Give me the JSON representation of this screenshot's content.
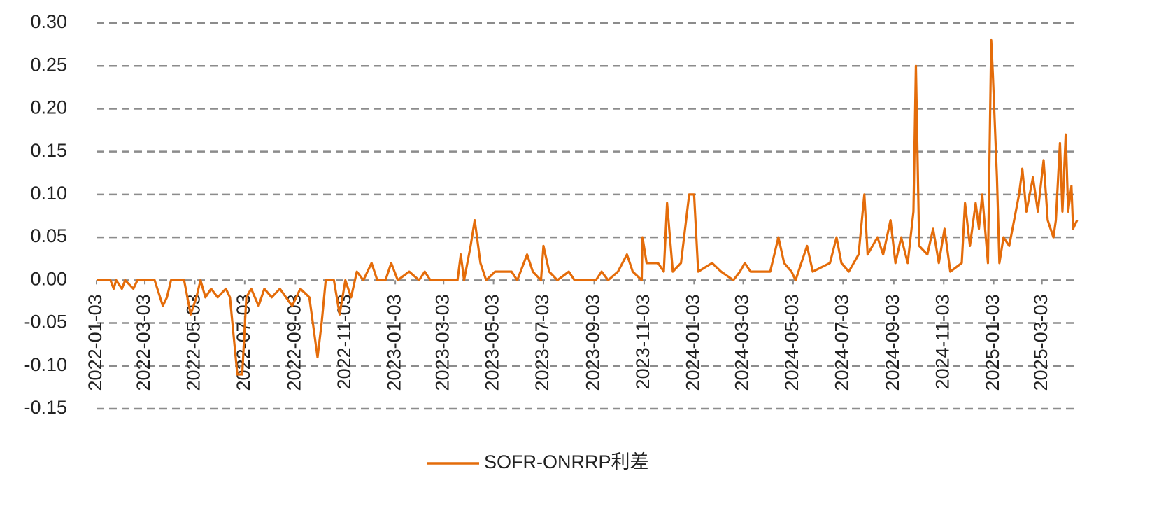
{
  "chart_data": {
    "type": "line",
    "x": [
      "2022-01-03",
      "2022-01-20",
      "2022-01-24",
      "2022-01-27",
      "2022-02-03",
      "2022-02-07",
      "2022-02-17",
      "2022-02-22",
      "2022-03-15",
      "2022-03-25",
      "2022-03-30",
      "2022-04-04",
      "2022-04-20",
      "2022-04-28",
      "2022-05-05",
      "2022-05-10",
      "2022-05-16",
      "2022-05-23",
      "2022-05-31",
      "2022-06-10",
      "2022-06-15",
      "2022-06-24",
      "2022-06-30",
      "2022-07-05",
      "2022-07-11",
      "2022-07-20",
      "2022-07-27",
      "2022-08-05",
      "2022-08-15",
      "2022-08-30",
      "2022-09-09",
      "2022-09-20",
      "2022-09-30",
      "2022-10-05",
      "2022-10-10",
      "2022-10-20",
      "2022-10-27",
      "2022-11-03",
      "2022-11-10",
      "2022-11-17",
      "2022-11-25",
      "2022-12-05",
      "2022-12-12",
      "2022-12-22",
      "2022-12-29",
      "2023-01-06",
      "2023-01-20",
      "2023-02-01",
      "2023-02-08",
      "2023-02-15",
      "2023-03-20",
      "2023-03-24",
      "2023-03-28",
      "2023-04-05",
      "2023-04-10",
      "2023-04-17",
      "2023-04-24",
      "2023-05-05",
      "2023-05-25",
      "2023-06-01",
      "2023-06-13",
      "2023-06-20",
      "2023-06-30",
      "2023-07-03",
      "2023-07-10",
      "2023-07-20",
      "2023-08-03",
      "2023-08-10",
      "2023-09-05",
      "2023-09-12",
      "2023-09-20",
      "2023-10-02",
      "2023-10-13",
      "2023-10-20",
      "2023-10-31",
      "2023-11-01",
      "2023-11-06",
      "2023-11-20",
      "2023-11-27",
      "2023-12-01",
      "2023-12-08",
      "2023-12-18",
      "2023-12-28",
      "2024-01-03",
      "2024-01-08",
      "2024-01-25",
      "2024-02-05",
      "2024-02-20",
      "2024-02-28",
      "2024-03-05",
      "2024-03-12",
      "2024-04-05",
      "2024-04-15",
      "2024-04-22",
      "2024-05-01",
      "2024-05-06",
      "2024-05-20",
      "2024-05-27",
      "2024-06-17",
      "2024-06-25",
      "2024-07-01",
      "2024-07-10",
      "2024-07-22",
      "2024-07-29",
      "2024-08-02",
      "2024-08-14",
      "2024-08-21",
      "2024-08-30",
      "2024-09-05",
      "2024-09-12",
      "2024-09-20",
      "2024-09-27",
      "2024-09-30",
      "2024-10-04",
      "2024-10-14",
      "2024-10-21",
      "2024-10-28",
      "2024-11-04",
      "2024-11-11",
      "2024-11-25",
      "2024-11-29",
      "2024-12-05",
      "2024-12-12",
      "2024-12-16",
      "2024-12-20",
      "2024-12-27",
      "2024-12-31",
      "2025-01-02",
      "2025-01-07",
      "2025-01-10",
      "2025-01-15",
      "2025-01-22",
      "2025-02-03",
      "2025-02-07",
      "2025-02-12",
      "2025-02-20",
      "2025-02-26",
      "2025-03-05",
      "2025-03-10",
      "2025-03-17",
      "2025-03-20",
      "2025-03-25",
      "2025-03-28",
      "2025-04-01",
      "2025-04-04",
      "2025-04-08",
      "2025-04-10",
      "2025-04-15"
    ],
    "series": [
      {
        "name": "SOFR-ONRRP利差",
        "color": "#e46c0a",
        "values": [
          0,
          0,
          -0.01,
          0,
          -0.01,
          0,
          -0.01,
          0,
          0,
          -0.03,
          -0.02,
          0,
          0,
          -0.04,
          -0.02,
          0,
          -0.02,
          -0.01,
          -0.02,
          -0.01,
          -0.02,
          -0.11,
          -0.11,
          -0.02,
          -0.01,
          -0.03,
          -0.01,
          -0.02,
          -0.01,
          -0.03,
          -0.01,
          -0.02,
          -0.09,
          -0.05,
          0,
          0,
          -0.04,
          0,
          -0.02,
          0.01,
          0,
          0.02,
          0,
          0,
          0.02,
          0,
          0.01,
          0,
          0.01,
          0,
          0,
          0.03,
          0,
          0.04,
          0.07,
          0.02,
          0,
          0.01,
          0.01,
          0,
          0.03,
          0.01,
          0,
          0.04,
          0.01,
          0,
          0.01,
          0,
          0,
          0.01,
          0,
          0.01,
          0.03,
          0.01,
          0,
          0.05,
          0.02,
          0.02,
          0.01,
          0.09,
          0.01,
          0.02,
          0.1,
          0.1,
          0.01,
          0.02,
          0.01,
          0,
          0.01,
          0.02,
          0.01,
          0.01,
          0.05,
          0.02,
          0.01,
          0,
          0.04,
          0.01,
          0.02,
          0.05,
          0.02,
          0.01,
          0.03,
          0.1,
          0.03,
          0.05,
          0.03,
          0.07,
          0.02,
          0.05,
          0.02,
          0.08,
          0.25,
          0.04,
          0.03,
          0.06,
          0.02,
          0.06,
          0.01,
          0.02,
          0.09,
          0.04,
          0.09,
          0.06,
          0.1,
          0.02,
          0.28,
          0.24,
          0.12,
          0.02,
          0.05,
          0.04,
          0.1,
          0.13,
          0.08,
          0.12,
          0.08,
          0.14,
          0.07,
          0.05,
          0.07,
          0.16,
          0.08,
          0.17,
          0.08,
          0.11,
          0.06,
          0.07
        ]
      }
    ],
    "xlim": [
      "2022-01-03",
      "2025-04-15"
    ],
    "xticks": [
      "2022-01-03",
      "2022-03-03",
      "2022-05-03",
      "2022-07-03",
      "2022-09-03",
      "2022-11-03",
      "2023-01-03",
      "2023-03-03",
      "2023-05-03",
      "2023-07-03",
      "2023-09-03",
      "2023-11-03",
      "2024-01-03",
      "2024-03-03",
      "2024-05-03",
      "2024-07-03",
      "2024-09-03",
      "2024-11-03",
      "2025-01-03",
      "2025-03-03"
    ],
    "ylim": [
      -0.15,
      0.3
    ],
    "yticks": [
      {
        "value": -0.15,
        "label": "-0.15"
      },
      {
        "value": -0.1,
        "label": "-0.10"
      },
      {
        "value": -0.05,
        "label": "-0.05"
      },
      {
        "value": 0,
        "label": "0.00"
      },
      {
        "value": 0.05,
        "label": "0.05"
      },
      {
        "value": 0.1,
        "label": "0.10"
      },
      {
        "value": 0.15,
        "label": "0.15"
      },
      {
        "value": 0.2,
        "label": "0.20"
      },
      {
        "value": 0.25,
        "label": "0.25"
      },
      {
        "value": 0.3,
        "label": "0.30"
      }
    ],
    "grid": true,
    "legend": "bottom"
  }
}
